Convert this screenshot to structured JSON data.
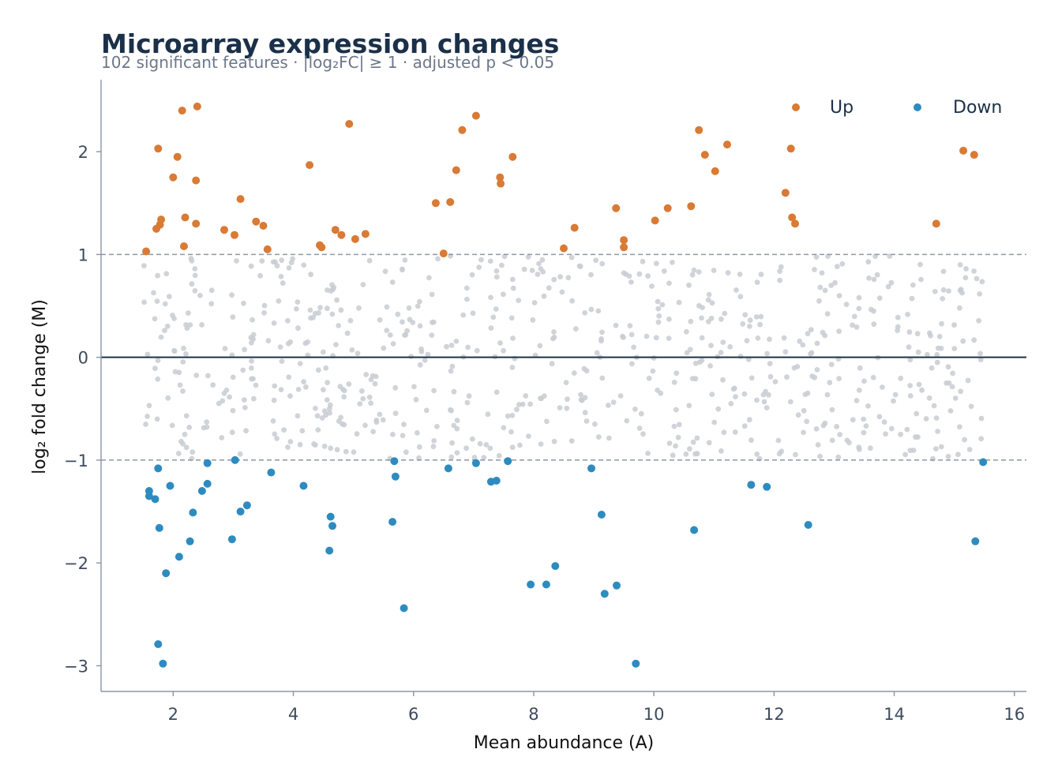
{
  "chart_data": {
    "type": "scatter",
    "title": "Microarray expression changes",
    "subtitle": "102 significant features · |log₂FC| ≥ 1 · adjusted p < 0.05",
    "xlabel": "Mean abundance (A)",
    "ylabel": "log₂ fold change (M)",
    "xlim": [
      0.8,
      16.2
    ],
    "ylim": [
      -3.25,
      2.7
    ],
    "xticks": [
      2,
      4,
      6,
      8,
      10,
      12,
      14,
      16
    ],
    "yticks": [
      -3,
      -2,
      -1,
      0,
      1,
      2
    ],
    "ytick_labels": [
      "−3",
      "−2",
      "−1",
      "0",
      "1",
      "2"
    ],
    "threshold_lines": [
      1,
      -1
    ],
    "zero_line": 0,
    "grid": false,
    "legend": {
      "position": "top-right"
    },
    "colors": {
      "up": "#d97a35",
      "down": "#2e8bc0",
      "background": "#c8ccd2",
      "zero_line": "#1e3344",
      "threshold": "#8c98a8"
    },
    "series": [
      {
        "name": "Up",
        "points": [
          [
            1.55,
            1.03
          ],
          [
            1.72,
            1.25
          ],
          [
            1.75,
            2.03
          ],
          [
            1.78,
            1.29
          ],
          [
            1.8,
            1.34
          ],
          [
            2.0,
            1.75
          ],
          [
            2.07,
            1.95
          ],
          [
            2.15,
            2.4
          ],
          [
            2.18,
            1.08
          ],
          [
            2.2,
            1.36
          ],
          [
            2.38,
            1.72
          ],
          [
            2.38,
            1.3
          ],
          [
            2.4,
            2.44
          ],
          [
            2.85,
            1.24
          ],
          [
            3.02,
            1.19
          ],
          [
            3.12,
            1.54
          ],
          [
            3.38,
            1.32
          ],
          [
            3.5,
            1.28
          ],
          [
            3.57,
            1.05
          ],
          [
            4.27,
            1.87
          ],
          [
            4.44,
            1.09
          ],
          [
            4.47,
            1.07
          ],
          [
            4.7,
            1.24
          ],
          [
            4.8,
            1.19
          ],
          [
            4.93,
            2.27
          ],
          [
            5.03,
            1.15
          ],
          [
            5.2,
            1.2
          ],
          [
            6.37,
            1.5
          ],
          [
            6.5,
            1.01
          ],
          [
            6.61,
            1.51
          ],
          [
            6.71,
            1.82
          ],
          [
            6.81,
            2.21
          ],
          [
            7.04,
            2.35
          ],
          [
            7.44,
            1.75
          ],
          [
            7.45,
            1.69
          ],
          [
            7.65,
            1.95
          ],
          [
            8.5,
            1.06
          ],
          [
            8.68,
            1.26
          ],
          [
            9.37,
            1.45
          ],
          [
            9.5,
            1.14
          ],
          [
            9.5,
            1.07
          ],
          [
            10.02,
            1.33
          ],
          [
            10.23,
            1.45
          ],
          [
            10.62,
            1.47
          ],
          [
            10.75,
            2.21
          ],
          [
            10.85,
            1.97
          ],
          [
            11.02,
            1.81
          ],
          [
            11.22,
            2.07
          ],
          [
            12.19,
            1.6
          ],
          [
            12.28,
            2.03
          ],
          [
            12.3,
            1.36
          ],
          [
            12.35,
            1.3
          ],
          [
            14.7,
            1.3
          ],
          [
            15.15,
            2.01
          ],
          [
            15.33,
            1.97
          ]
        ]
      },
      {
        "name": "Down",
        "points": [
          [
            1.6,
            -1.3
          ],
          [
            1.6,
            -1.35
          ],
          [
            1.7,
            -1.38
          ],
          [
            1.75,
            -1.08
          ],
          [
            1.75,
            -2.79
          ],
          [
            1.77,
            -1.66
          ],
          [
            1.83,
            -2.98
          ],
          [
            1.88,
            -2.1
          ],
          [
            1.95,
            -1.25
          ],
          [
            2.1,
            -1.94
          ],
          [
            2.28,
            -1.79
          ],
          [
            2.33,
            -1.51
          ],
          [
            2.48,
            -1.3
          ],
          [
            2.57,
            -1.03
          ],
          [
            2.57,
            -1.23
          ],
          [
            2.98,
            -1.77
          ],
          [
            3.03,
            -1.0
          ],
          [
            3.12,
            -1.5
          ],
          [
            3.23,
            -1.44
          ],
          [
            3.63,
            -1.12
          ],
          [
            4.17,
            -1.25
          ],
          [
            4.6,
            -1.88
          ],
          [
            4.62,
            -1.55
          ],
          [
            4.65,
            -1.64
          ],
          [
            5.65,
            -1.6
          ],
          [
            5.68,
            -1.01
          ],
          [
            5.7,
            -1.16
          ],
          [
            5.84,
            -2.44
          ],
          [
            6.58,
            -1.08
          ],
          [
            7.04,
            -1.03
          ],
          [
            7.29,
            -1.21
          ],
          [
            7.38,
            -1.2
          ],
          [
            7.57,
            -1.01
          ],
          [
            7.95,
            -2.21
          ],
          [
            8.21,
            -2.21
          ],
          [
            8.36,
            -2.03
          ],
          [
            8.96,
            -1.08
          ],
          [
            9.13,
            -1.53
          ],
          [
            9.18,
            -2.3
          ],
          [
            9.38,
            -2.22
          ],
          [
            9.7,
            -2.98
          ],
          [
            10.67,
            -1.68
          ],
          [
            11.62,
            -1.24
          ],
          [
            11.88,
            -1.26
          ],
          [
            12.57,
            -1.63
          ],
          [
            15.35,
            -1.79
          ],
          [
            15.48,
            -1.02
          ]
        ]
      }
    ]
  }
}
